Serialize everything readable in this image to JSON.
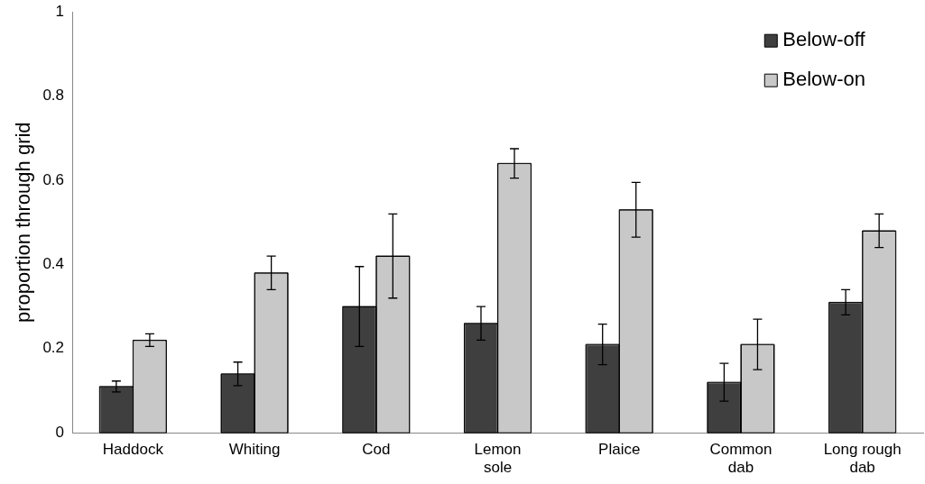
{
  "chart_data": {
    "type": "bar",
    "ylabel": "proportion through grid",
    "categories": [
      "Haddock",
      "Whiting",
      "Cod",
      "Lemon sole",
      "Plaice",
      "Common dab",
      "Long rough dab"
    ],
    "series": [
      {
        "name": "Below-off",
        "color": "#3f3f3f",
        "values": [
          0.11,
          0.14,
          0.3,
          0.26,
          0.21,
          0.12,
          0.31
        ],
        "errors": [
          0.013,
          0.028,
          0.095,
          0.04,
          0.048,
          0.045,
          0.03
        ]
      },
      {
        "name": "Below-on",
        "color": "#c8c8c8",
        "values": [
          0.22,
          0.38,
          0.42,
          0.64,
          0.53,
          0.21,
          0.48
        ],
        "errors": [
          0.015,
          0.04,
          0.1,
          0.035,
          0.065,
          0.06,
          0.04
        ]
      }
    ],
    "ylim": [
      0,
      1
    ],
    "yticks": [
      0,
      0.2,
      0.4,
      0.6,
      0.8,
      1
    ],
    "grid": false,
    "legend": "top right"
  }
}
